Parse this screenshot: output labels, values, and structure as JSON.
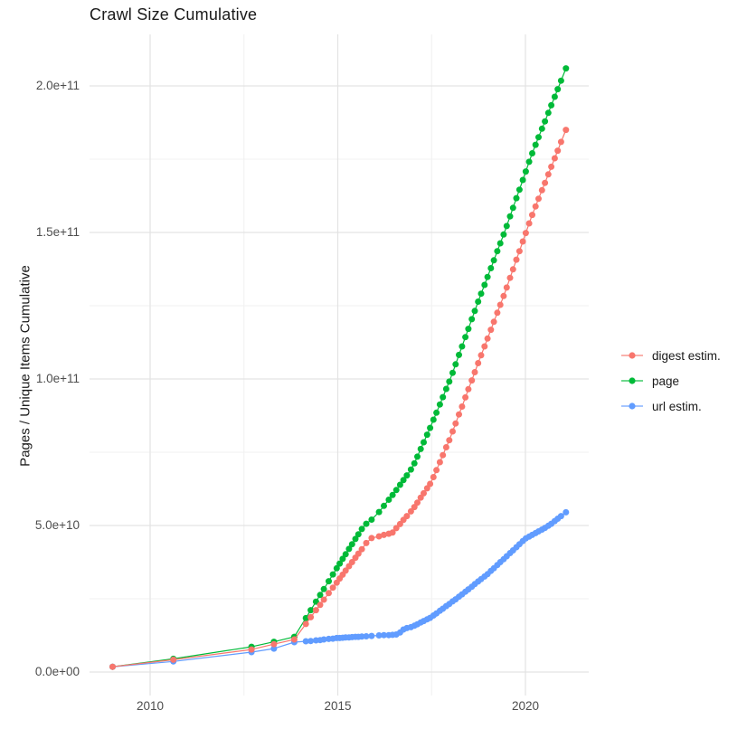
{
  "title": "Crawl Size Cumulative",
  "y_axis": {
    "title": "Pages / Unique Items Cumulative",
    "tick_labels": [
      "0.0e+00",
      "5.0e+10",
      "1.0e+11",
      "1.5e+11",
      "2.0e+11"
    ],
    "tick_values_e9": [
      0,
      50,
      100,
      150,
      200
    ],
    "minor_values_e9": [
      25,
      75,
      125,
      175
    ]
  },
  "x_axis": {
    "tick_labels": [
      "2010",
      "2015",
      "2020"
    ],
    "tick_values": [
      2010,
      2015,
      2020
    ],
    "minor_values": [
      2012.5,
      2017.5
    ]
  },
  "legend": {
    "items": [
      {
        "label": "digest estim.",
        "color": "#F8766D"
      },
      {
        "label": "page",
        "color": "#00BA38"
      },
      {
        "label": "url estim.",
        "color": "#619CFF"
      }
    ]
  },
  "colors": {
    "grid_major": "#e3e3e3",
    "grid_minor": "#f0f0f0",
    "background": "#ffffff",
    "tick_text": "#4d4d4d",
    "title_text": "#1a1a1a"
  },
  "chart_data": {
    "type": "line",
    "title": "Crawl Size Cumulative",
    "xlabel": "",
    "ylabel": "Pages / Unique Items Cumulative",
    "xlim": [
      2008.4,
      2021.7
    ],
    "ylim_e9": [
      0,
      216
    ],
    "grid": true,
    "legend_position": "right",
    "marker": "point",
    "values_unit": "items (billions, 1e9)",
    "x_years": [
      2009.0,
      2010.62,
      2012.7,
      2013.3,
      2013.84,
      2014.15,
      2014.28,
      2014.42,
      2014.53,
      2014.63,
      2014.76,
      2014.87,
      2014.97,
      2015.05,
      2015.13,
      2015.21,
      2015.3,
      2015.38,
      2015.47,
      2015.55,
      2015.64,
      2015.76,
      2015.9,
      2016.1,
      2016.23,
      2016.36,
      2016.46,
      2016.56,
      2016.66,
      2016.75,
      2016.84,
      2016.95,
      2017.04,
      2017.12,
      2017.21,
      2017.29,
      2017.38,
      2017.46,
      2017.55,
      2017.63,
      2017.72,
      2017.8,
      2017.89,
      2017.97,
      2018.06,
      2018.14,
      2018.23,
      2018.31,
      2018.4,
      2018.48,
      2018.57,
      2018.65,
      2018.74,
      2018.82,
      2018.91,
      2018.99,
      2019.08,
      2019.16,
      2019.25,
      2019.33,
      2019.42,
      2019.5,
      2019.59,
      2019.67,
      2019.76,
      2019.84,
      2019.93,
      2020.01,
      2020.1,
      2020.18,
      2020.27,
      2020.35,
      2020.44,
      2020.52,
      2020.61,
      2020.69,
      2020.78,
      2020.86,
      2020.95,
      2021.08
    ],
    "series": [
      {
        "name": "digest estim.",
        "color": "#F8766D",
        "values_e9": [
          1.8,
          4.2,
          7.7,
          9.5,
          11.1,
          16.4,
          18.7,
          21.1,
          22.9,
          24.7,
          26.9,
          28.8,
          30.5,
          31.9,
          33.2,
          34.6,
          36.1,
          37.5,
          39.0,
          40.4,
          41.9,
          44.0,
          45.7,
          46.3,
          46.8,
          47.2,
          47.6,
          49.1,
          50.5,
          51.9,
          53.2,
          54.8,
          56.3,
          57.8,
          59.5,
          61.0,
          62.7,
          64.2,
          66.5,
          68.9,
          71.6,
          74.0,
          76.7,
          79.1,
          82.1,
          84.8,
          87.9,
          90.6,
          93.7,
          96.5,
          99.5,
          102.3,
          105.4,
          108.1,
          111.1,
          113.8,
          116.8,
          119.5,
          122.6,
          125.3,
          128.3,
          131.2,
          134.5,
          137.4,
          140.7,
          143.6,
          146.9,
          149.8,
          153.1,
          156.0,
          158.9,
          161.5,
          164.4,
          166.9,
          169.8,
          172.4,
          175.3,
          177.9,
          180.9,
          185.0
        ]
      },
      {
        "name": "page",
        "color": "#00BA38",
        "values_e9": [
          1.8,
          4.5,
          8.6,
          10.3,
          12.0,
          18.4,
          21.1,
          24.0,
          26.3,
          28.3,
          31.0,
          33.3,
          35.4,
          37.0,
          38.6,
          40.2,
          42.0,
          43.6,
          45.4,
          47.0,
          48.8,
          50.6,
          52.0,
          54.6,
          56.7,
          58.8,
          60.4,
          62.1,
          63.9,
          65.5,
          67.1,
          69.1,
          71.2,
          73.5,
          76.1,
          78.4,
          81.0,
          83.3,
          86.1,
          88.5,
          91.3,
          93.8,
          96.6,
          99.1,
          102.1,
          105.0,
          108.2,
          111.1,
          114.3,
          117.1,
          120.4,
          123.2,
          126.4,
          129.1,
          132.1,
          134.8,
          137.8,
          140.5,
          143.6,
          146.3,
          149.3,
          152.2,
          155.5,
          158.4,
          161.7,
          164.6,
          167.9,
          170.8,
          174.1,
          177.0,
          179.9,
          182.5,
          185.4,
          187.9,
          190.8,
          193.4,
          196.3,
          198.9,
          201.8,
          206.0
        ]
      },
      {
        "name": "url estim.",
        "color": "#619CFF",
        "values_e9": [
          1.8,
          3.6,
          6.8,
          8.0,
          10.2,
          10.5,
          10.6,
          10.8,
          10.9,
          11.1,
          11.3,
          11.4,
          11.6,
          11.6,
          11.7,
          11.8,
          11.8,
          11.9,
          12.0,
          12.0,
          12.1,
          12.2,
          12.3,
          12.5,
          12.6,
          12.6,
          12.7,
          12.8,
          13.5,
          14.5,
          15.0,
          15.3,
          15.8,
          16.3,
          16.9,
          17.4,
          18.0,
          18.5,
          19.3,
          20.0,
          20.9,
          21.6,
          22.5,
          23.2,
          24.1,
          24.8,
          25.7,
          26.5,
          27.4,
          28.2,
          29.1,
          30.0,
          30.9,
          31.7,
          32.6,
          33.4,
          34.5,
          35.4,
          36.5,
          37.5,
          38.5,
          39.5,
          40.6,
          41.5,
          42.6,
          43.6,
          44.7,
          45.6,
          46.2,
          46.8,
          47.4,
          48.0,
          48.6,
          49.2,
          49.9,
          50.6,
          51.5,
          52.3,
          53.2,
          54.5
        ]
      }
    ]
  }
}
